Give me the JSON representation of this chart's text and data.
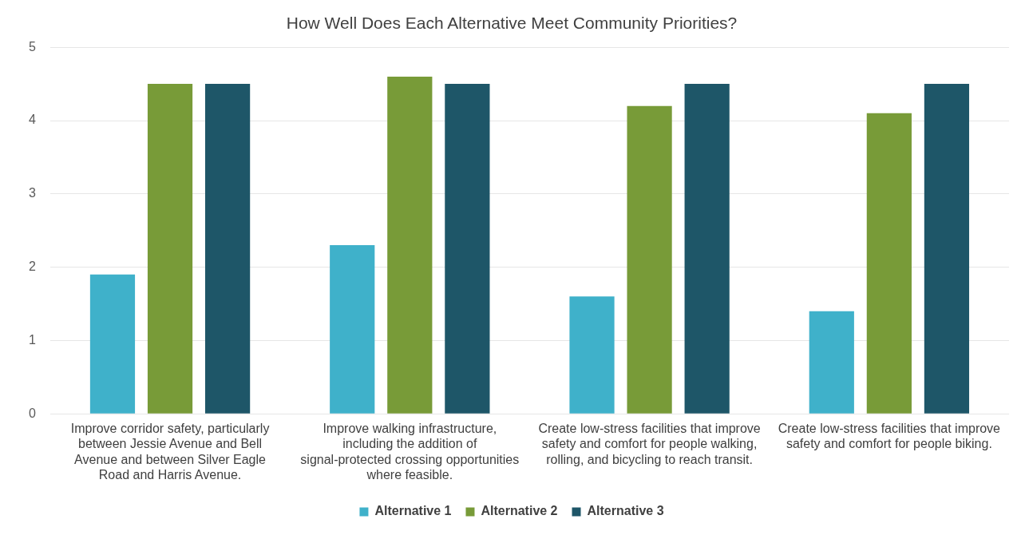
{
  "chart_data": {
    "type": "bar",
    "title": "How Well Does Each Alternative Meet Community Priorities?",
    "categories": [
      "Improve corridor safety, particularly between Jessie Avenue and Bell Avenue and between Silver Eagle Road and Harris Avenue.",
      "Improve walking infrastructure, including the addition of signal-protected crossing opportunities where feasible.",
      "Create low-stress facilities that improve safety and comfort for people walking, rolling, and bicycling to reach transit.",
      "Create low-stress facilities that improve safety and comfort for people biking."
    ],
    "series": [
      {
        "name": "Alternative 1",
        "color": "#3fb1ca",
        "values": [
          1.9,
          2.3,
          1.6,
          1.4
        ]
      },
      {
        "name": "Alternative 2",
        "color": "#789b38",
        "values": [
          4.5,
          4.6,
          4.2,
          4.1
        ]
      },
      {
        "name": "Alternative 3",
        "color": "#1e5668",
        "values": [
          4.5,
          4.5,
          4.5,
          4.5
        ]
      }
    ],
    "ylim": [
      0,
      5
    ],
    "yticks": [
      0,
      1,
      2,
      3,
      4,
      5
    ],
    "grid": "y",
    "legend": "bottom"
  }
}
